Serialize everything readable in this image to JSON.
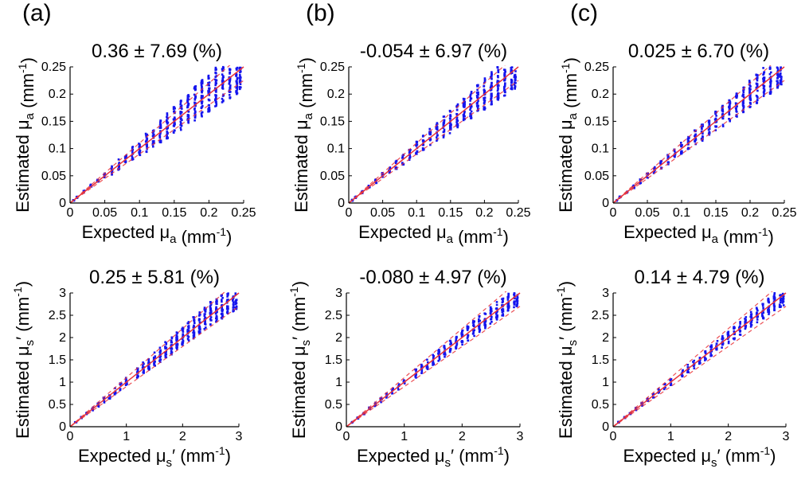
{
  "panel_labels": [
    "(a)",
    "(b)",
    "(c)"
  ],
  "colors": {
    "points": "#1515ee",
    "identity_line": "#e8333a",
    "bound_lines": "#e8333a",
    "axes": "#000000",
    "background": "#ffffff"
  },
  "chart_data": [
    {
      "type": "scatter",
      "panel": "(a)",
      "row": "absorption",
      "title": "0.36 ± 7.69 (%)",
      "xlabel": "Expected μa (mm⁻¹)",
      "ylabel": "Estimated μa (mm⁻¹)",
      "xlim": [
        0,
        0.25
      ],
      "ylim": [
        0,
        0.25
      ],
      "xticks": [
        "0",
        "0.05",
        "0.1",
        "0.15",
        "0.2",
        "0.25"
      ],
      "yticks": [
        "0",
        "0.05",
        "0.1",
        "0.15",
        "0.2",
        "0.25"
      ],
      "x": [
        0.005,
        0.01,
        0.02,
        0.03,
        0.04,
        0.05,
        0.06,
        0.07,
        0.08,
        0.09,
        0.1,
        0.11,
        0.12,
        0.13,
        0.14,
        0.15,
        0.16,
        0.17,
        0.18,
        0.19,
        0.2,
        0.21,
        0.22,
        0.23,
        0.24,
        0.245
      ],
      "y_min": [
        0.004,
        0.009,
        0.018,
        0.027,
        0.035,
        0.044,
        0.052,
        0.061,
        0.069,
        0.077,
        0.085,
        0.093,
        0.101,
        0.11,
        0.118,
        0.126,
        0.134,
        0.143,
        0.151,
        0.159,
        0.167,
        0.176,
        0.184,
        0.192,
        0.2,
        0.205
      ],
      "y_max": [
        0.006,
        0.012,
        0.023,
        0.034,
        0.046,
        0.057,
        0.069,
        0.08,
        0.092,
        0.104,
        0.116,
        0.128,
        0.14,
        0.152,
        0.165,
        0.178,
        0.19,
        0.202,
        0.215,
        0.228,
        0.24,
        0.25,
        0.25,
        0.25,
        0.25,
        0.25
      ],
      "identity_line": true,
      "bound_lines": true,
      "grid": false
    },
    {
      "type": "scatter",
      "panel": "(b)",
      "row": "absorption",
      "title": "-0.054 ± 6.97 (%)",
      "xlabel": "Expected μa (mm⁻¹)",
      "ylabel": "Estimated μa (mm⁻¹)",
      "xlim": [
        0,
        0.25
      ],
      "ylim": [
        0,
        0.25
      ],
      "xticks": [
        "0",
        "0.05",
        "0.1",
        "0.15",
        "0.2",
        "0.25"
      ],
      "yticks": [
        "0",
        "0.05",
        "0.1",
        "0.15",
        "0.2",
        "0.25"
      ],
      "x": [
        0.005,
        0.01,
        0.02,
        0.03,
        0.04,
        0.05,
        0.06,
        0.07,
        0.08,
        0.09,
        0.1,
        0.11,
        0.12,
        0.13,
        0.14,
        0.15,
        0.16,
        0.17,
        0.18,
        0.19,
        0.2,
        0.21,
        0.22,
        0.23,
        0.24,
        0.245
      ],
      "y_min": [
        0.004,
        0.009,
        0.018,
        0.027,
        0.036,
        0.045,
        0.053,
        0.062,
        0.07,
        0.079,
        0.087,
        0.095,
        0.103,
        0.112,
        0.12,
        0.128,
        0.137,
        0.146,
        0.154,
        0.163,
        0.171,
        0.18,
        0.188,
        0.197,
        0.205,
        0.21
      ],
      "y_max": [
        0.006,
        0.012,
        0.022,
        0.034,
        0.045,
        0.056,
        0.067,
        0.079,
        0.09,
        0.101,
        0.113,
        0.124,
        0.136,
        0.147,
        0.159,
        0.17,
        0.182,
        0.194,
        0.206,
        0.218,
        0.23,
        0.242,
        0.25,
        0.25,
        0.25,
        0.25
      ],
      "identity_line": true,
      "bound_lines": true,
      "grid": false
    },
    {
      "type": "scatter",
      "panel": "(c)",
      "row": "absorption",
      "title": "0.025 ± 6.70 (%)",
      "xlabel": "Expected μa (mm⁻¹)",
      "ylabel": "Estimated μa (mm⁻¹)",
      "xlim": [
        0,
        0.25
      ],
      "ylim": [
        0,
        0.25
      ],
      "xticks": [
        "0",
        "0.05",
        "0.1",
        "0.15",
        "0.2",
        "0.25"
      ],
      "yticks": [
        "0",
        "0.05",
        "0.1",
        "0.15",
        "0.2",
        "0.25"
      ],
      "x": [
        0.005,
        0.01,
        0.02,
        0.03,
        0.04,
        0.05,
        0.06,
        0.07,
        0.08,
        0.09,
        0.1,
        0.11,
        0.12,
        0.13,
        0.14,
        0.15,
        0.16,
        0.17,
        0.18,
        0.19,
        0.2,
        0.21,
        0.22,
        0.23,
        0.24,
        0.245
      ],
      "y_min": [
        0.004,
        0.009,
        0.018,
        0.027,
        0.036,
        0.045,
        0.054,
        0.063,
        0.071,
        0.08,
        0.089,
        0.097,
        0.106,
        0.114,
        0.123,
        0.131,
        0.14,
        0.149,
        0.157,
        0.166,
        0.175,
        0.183,
        0.192,
        0.2,
        0.208,
        0.212
      ],
      "y_max": [
        0.006,
        0.012,
        0.022,
        0.033,
        0.045,
        0.056,
        0.067,
        0.078,
        0.089,
        0.1,
        0.111,
        0.122,
        0.134,
        0.145,
        0.157,
        0.168,
        0.179,
        0.191,
        0.202,
        0.214,
        0.225,
        0.237,
        0.248,
        0.25,
        0.25,
        0.25
      ],
      "identity_line": true,
      "bound_lines": true,
      "grid": false
    },
    {
      "type": "scatter",
      "panel": "(a)",
      "row": "scattering",
      "title": "0.25 ± 5.81 (%)",
      "xlabel": "Expected μs′ (mm⁻¹)",
      "ylabel": "Estimated μs′ (mm⁻¹)",
      "xlim": [
        0,
        3
      ],
      "ylim": [
        0,
        3
      ],
      "xticks": [
        "0",
        "1",
        "2",
        "3"
      ],
      "yticks": [
        "0",
        "0.5",
        "1",
        "1.5",
        "2",
        "2.5",
        "3"
      ],
      "x": [
        0.1,
        0.2,
        0.3,
        0.4,
        0.5,
        0.6,
        0.7,
        0.8,
        0.9,
        1.0,
        1.2,
        1.3,
        1.4,
        1.5,
        1.6,
        1.7,
        1.8,
        1.9,
        2.0,
        2.1,
        2.2,
        2.3,
        2.4,
        2.5,
        2.6,
        2.7,
        2.8,
        2.9,
        2.95
      ],
      "y_min": [
        0.09,
        0.18,
        0.27,
        0.36,
        0.45,
        0.54,
        0.63,
        0.72,
        0.81,
        0.9,
        1.08,
        1.17,
        1.26,
        1.35,
        1.44,
        1.53,
        1.62,
        1.71,
        1.8,
        1.89,
        1.98,
        2.07,
        2.16,
        2.25,
        2.34,
        2.42,
        2.5,
        2.58,
        2.62
      ],
      "y_max": [
        0.11,
        0.22,
        0.33,
        0.44,
        0.55,
        0.66,
        0.77,
        0.88,
        0.99,
        1.1,
        1.33,
        1.45,
        1.56,
        1.68,
        1.79,
        1.9,
        2.02,
        2.13,
        2.24,
        2.35,
        2.46,
        2.58,
        2.69,
        2.8,
        2.9,
        2.98,
        3.0,
        3.0,
        3.0
      ],
      "identity_line": true,
      "bound_lines": true,
      "grid": false
    },
    {
      "type": "scatter",
      "panel": "(b)",
      "row": "scattering",
      "title": "-0.080 ± 4.97 (%)",
      "xlabel": "Expected μs′ (mm⁻¹)",
      "ylabel": "Estimated μs′ (mm⁻¹)",
      "xlim": [
        0,
        3
      ],
      "ylim": [
        0,
        3
      ],
      "xticks": [
        "0",
        "1",
        "2",
        "3"
      ],
      "yticks": [
        "0",
        "0.5",
        "1",
        "1.5",
        "2",
        "2.5",
        "3"
      ],
      "x": [
        0.1,
        0.2,
        0.3,
        0.4,
        0.5,
        0.6,
        0.7,
        0.8,
        0.9,
        1.0,
        1.2,
        1.3,
        1.4,
        1.5,
        1.6,
        1.7,
        1.8,
        1.9,
        2.0,
        2.1,
        2.2,
        2.3,
        2.4,
        2.5,
        2.6,
        2.7,
        2.8,
        2.9,
        2.95
      ],
      "y_min": [
        0.09,
        0.18,
        0.28,
        0.37,
        0.46,
        0.55,
        0.65,
        0.74,
        0.83,
        0.92,
        1.1,
        1.2,
        1.29,
        1.38,
        1.47,
        1.56,
        1.66,
        1.75,
        1.84,
        1.93,
        2.02,
        2.12,
        2.21,
        2.3,
        2.39,
        2.48,
        2.57,
        2.66,
        2.7
      ],
      "y_max": [
        0.11,
        0.22,
        0.32,
        0.43,
        0.54,
        0.65,
        0.75,
        0.86,
        0.97,
        1.08,
        1.3,
        1.4,
        1.51,
        1.62,
        1.73,
        1.84,
        1.94,
        2.05,
        2.16,
        2.27,
        2.38,
        2.48,
        2.59,
        2.7,
        2.81,
        2.92,
        3.0,
        3.0,
        3.0
      ],
      "identity_line": true,
      "bound_lines": true,
      "grid": false
    },
    {
      "type": "scatter",
      "panel": "(c)",
      "row": "scattering",
      "title": "0.14 ± 4.79 (%)",
      "xlabel": "Expected μs′ (mm⁻¹)",
      "ylabel": "Estimated μs′ (mm⁻¹)",
      "xlim": [
        0,
        3
      ],
      "ylim": [
        0,
        3
      ],
      "xticks": [
        "0",
        "1",
        "2",
        "3"
      ],
      "yticks": [
        "0",
        "0.5",
        "1",
        "1.5",
        "2",
        "2.5",
        "3"
      ],
      "x": [
        0.1,
        0.2,
        0.3,
        0.4,
        0.5,
        0.6,
        0.7,
        0.8,
        0.9,
        1.0,
        1.2,
        1.3,
        1.4,
        1.5,
        1.6,
        1.7,
        1.8,
        1.9,
        2.0,
        2.1,
        2.2,
        2.3,
        2.4,
        2.5,
        2.6,
        2.7,
        2.8,
        2.9,
        2.95
      ],
      "y_min": [
        0.09,
        0.18,
        0.28,
        0.37,
        0.46,
        0.56,
        0.65,
        0.74,
        0.84,
        0.93,
        1.12,
        1.21,
        1.3,
        1.4,
        1.49,
        1.58,
        1.68,
        1.77,
        1.86,
        1.96,
        2.05,
        2.14,
        2.24,
        2.33,
        2.42,
        2.52,
        2.6,
        2.68,
        2.72
      ],
      "y_max": [
        0.11,
        0.22,
        0.32,
        0.43,
        0.54,
        0.64,
        0.75,
        0.86,
        0.97,
        1.07,
        1.29,
        1.4,
        1.5,
        1.61,
        1.72,
        1.83,
        1.93,
        2.04,
        2.15,
        2.25,
        2.36,
        2.47,
        2.58,
        2.68,
        2.79,
        2.9,
        3.0,
        3.0,
        3.0
      ],
      "identity_line": true,
      "bound_lines": true,
      "grid": false
    }
  ]
}
